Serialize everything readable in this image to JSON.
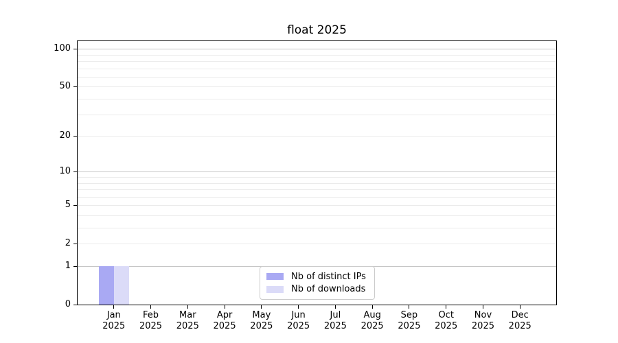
{
  "title": "float 2025",
  "chart_data": {
    "type": "bar",
    "title": "float 2025",
    "categories": [
      "Jan",
      "Feb",
      "Mar",
      "Apr",
      "May",
      "Jun",
      "Jul",
      "Aug",
      "Sep",
      "Oct",
      "Nov",
      "Dec"
    ],
    "category_year": "2025",
    "series": [
      {
        "name": "Nb of distinct IPs",
        "color": "#a9a9f3",
        "values": [
          1,
          0,
          0,
          0,
          0,
          0,
          0,
          0,
          0,
          0,
          0,
          0
        ]
      },
      {
        "name": "Nb of downloads",
        "color": "#dbdbf8",
        "values": [
          1,
          0,
          0,
          0,
          0,
          0,
          0,
          0,
          0,
          0,
          0,
          0
        ]
      }
    ],
    "xlabel": "",
    "ylabel": "",
    "yticks": [
      0,
      1,
      2,
      5,
      10,
      20,
      50,
      100
    ],
    "yscale": "log1p",
    "ylim": [
      0,
      115
    ],
    "grid": {
      "on": true,
      "major_at": [
        1,
        10,
        100
      ],
      "minor_at": [
        2,
        3,
        4,
        5,
        6,
        7,
        8,
        9,
        20,
        30,
        40,
        50,
        60,
        70,
        80,
        90
      ],
      "major_color": "#c6c6c6",
      "minor_color": "#ebebeb"
    },
    "legend_position": "lower center",
    "bar_colors": {
      "distinct_ips": "#a9a9f3",
      "downloads": "#dbdbf8"
    }
  }
}
